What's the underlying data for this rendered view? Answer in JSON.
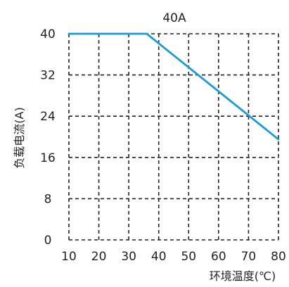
{
  "chart_data": {
    "type": "line",
    "title": "40A",
    "xlabel": "环境温度(℃)",
    "ylabel": "负载电流(A)",
    "x_ticks": [
      10,
      20,
      30,
      40,
      50,
      60,
      70,
      80
    ],
    "y_ticks": [
      0,
      8,
      16,
      24,
      32,
      40
    ],
    "xlim": [
      10,
      80
    ],
    "ylim": [
      0,
      40
    ],
    "grid": true,
    "grid_style": "dashed",
    "series": [
      {
        "name": "",
        "color": "#1a9ad6",
        "points": [
          {
            "x": 10,
            "y": 40
          },
          {
            "x": 36,
            "y": 40
          },
          {
            "x": 80,
            "y": 19.5
          }
        ]
      }
    ]
  }
}
